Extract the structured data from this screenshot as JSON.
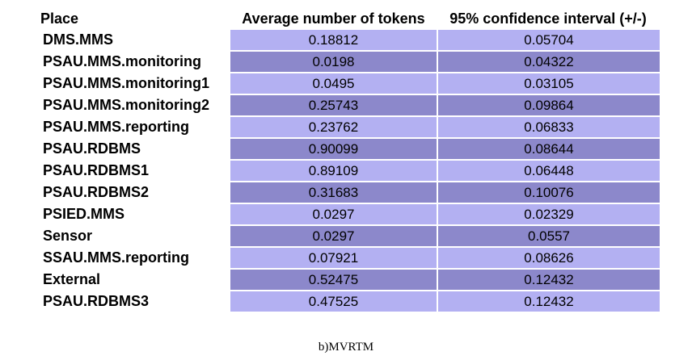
{
  "table": {
    "headers": {
      "place": "Place",
      "average": "Average number of tokens",
      "confidence": "95% confidence interval (+/-)"
    },
    "rows": [
      {
        "place": "DMS.MMS",
        "average": "0.18812",
        "confidence": "0.05704"
      },
      {
        "place": "PSAU.MMS.monitoring",
        "average": "0.0198",
        "confidence": "0.04322"
      },
      {
        "place": "PSAU.MMS.monitoring1",
        "average": "0.0495",
        "confidence": "0.03105"
      },
      {
        "place": "PSAU.MMS.monitoring2",
        "average": "0.25743",
        "confidence": "0.09864"
      },
      {
        "place": "PSAU.MMS.reporting",
        "average": "0.23762",
        "confidence": "0.06833"
      },
      {
        "place": "PSAU.RDBMS",
        "average": "0.90099",
        "confidence": "0.08644"
      },
      {
        "place": "PSAU.RDBMS1",
        "average": "0.89109",
        "confidence": "0.06448"
      },
      {
        "place": "PSAU.RDBMS2",
        "average": "0.31683",
        "confidence": "0.10076"
      },
      {
        "place": "PSIED.MMS",
        "average": "0.0297",
        "confidence": "0.02329"
      },
      {
        "place": "Sensor",
        "average": "0.0297",
        "confidence": "0.0557"
      },
      {
        "place": "SSAU.MMS.reporting",
        "average": "0.07921",
        "confidence": "0.08626"
      },
      {
        "place": "External",
        "average": "0.52475",
        "confidence": "0.12432"
      },
      {
        "place": "PSAU.RDBMS3",
        "average": "0.47525",
        "confidence": "0.12432"
      }
    ]
  },
  "caption": "b)MVRTM",
  "colors": {
    "row_light": "#b3b0f2",
    "row_dark": "#8c88cb"
  }
}
